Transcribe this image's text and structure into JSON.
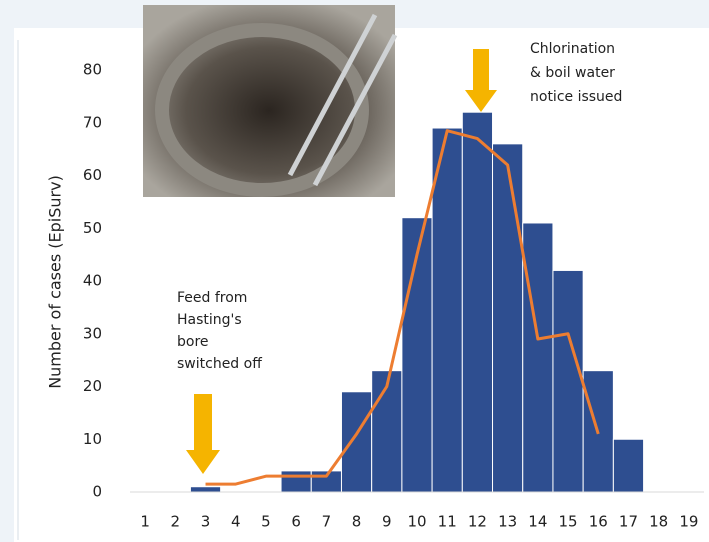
{
  "chart_data": {
    "type": "bar",
    "y_label": "Number of cases (EpiSurv)",
    "categories": [
      "1",
      "2",
      "3",
      "4",
      "5",
      "6",
      "7",
      "8",
      "9",
      "10",
      "11",
      "12",
      "13",
      "14",
      "15",
      "16",
      "17",
      "18",
      "19"
    ],
    "values": [
      0,
      0,
      1,
      0,
      0,
      4,
      4,
      19,
      23,
      52,
      69,
      72,
      66,
      51,
      42,
      23,
      10,
      0,
      0
    ],
    "color": "#2e4e90",
    "line": {
      "color": "#ed7d31",
      "values": [
        null,
        null,
        1.5,
        1.5,
        3,
        3,
        3,
        11,
        20,
        45,
        68.5,
        67,
        62,
        29,
        30,
        11,
        null,
        null,
        null
      ]
    },
    "ylim": [
      0,
      80
    ],
    "yticks": [
      0,
      10,
      20,
      30,
      40,
      50,
      60,
      70,
      80
    ],
    "annotations": [
      [
        "Feed from",
        "Hasting's",
        "bore",
        "switched off"
      ],
      [
        "Chlorination",
        "& boil water",
        "notice issued"
      ]
    ]
  }
}
